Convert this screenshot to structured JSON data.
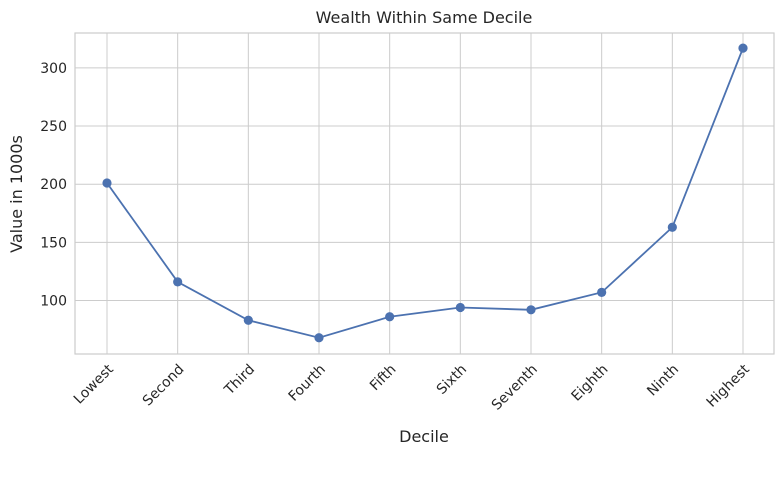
{
  "chart_data": {
    "type": "line",
    "title": "Wealth Within Same Decile",
    "xlabel": "Decile",
    "ylabel": "Value in 1000s",
    "categories": [
      "Lowest",
      "Second",
      "Third",
      "Fourth",
      "Fifth",
      "Sixth",
      "Seventh",
      "Eighth",
      "Ninth",
      "Highest"
    ],
    "series": [
      {
        "values": [
          201,
          116,
          83,
          68,
          86,
          94,
          92,
          107,
          163,
          317
        ]
      }
    ],
    "ylim": [
      54,
      330
    ],
    "yticks": [
      100,
      150,
      200,
      250,
      300
    ],
    "grid": true,
    "legend": "none",
    "x_tick_rotation": 45,
    "colors": {
      "series": "#4c72b0",
      "grid": "#cccccc",
      "text": "#262626"
    }
  }
}
